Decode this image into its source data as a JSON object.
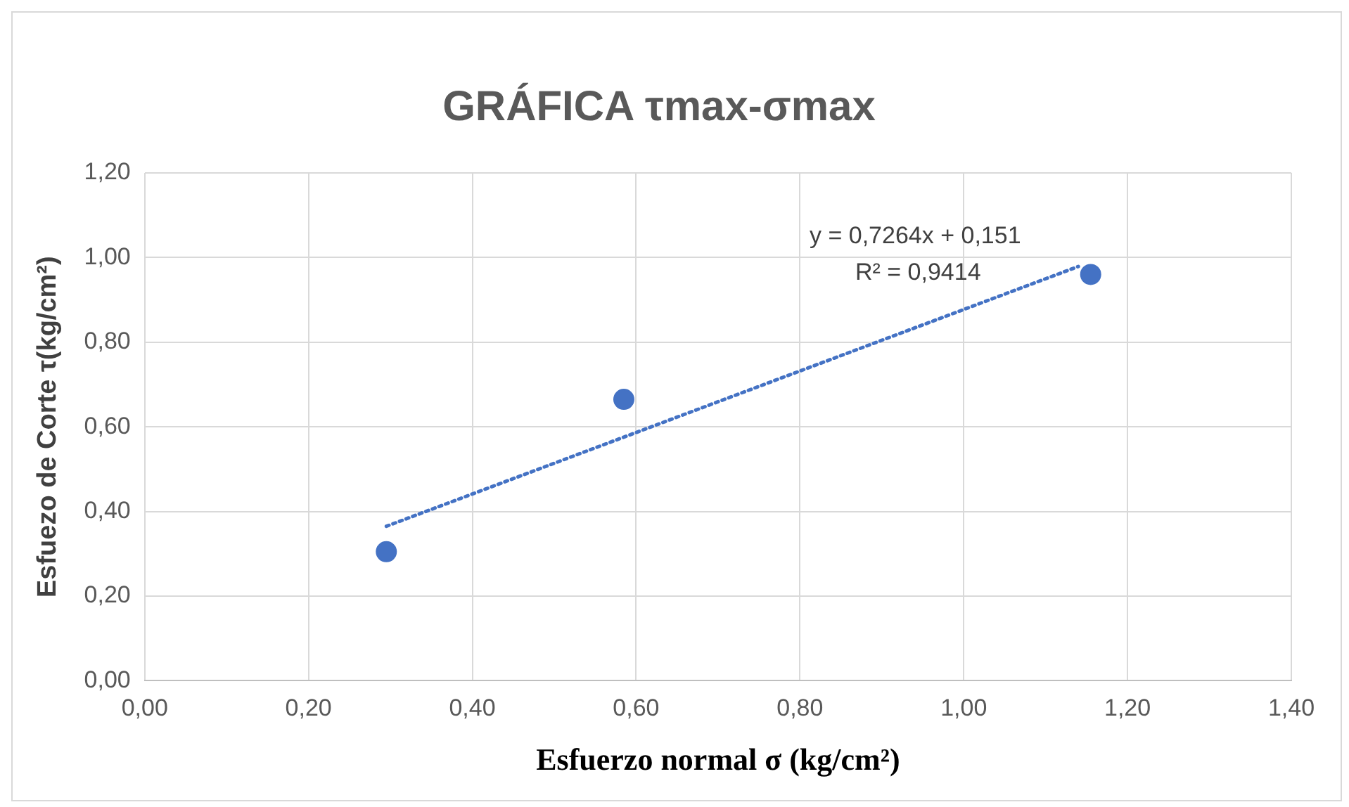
{
  "chart_data": {
    "type": "scatter",
    "title": "GRÁFICA τmax-σmax",
    "xlabel": "Esfuerzo normal σ (kg/cm²)",
    "ylabel": "Esfuezo de Corte τ(kg/cm²)",
    "series": [
      {
        "color": "#4472c4",
        "marker": "circle",
        "x": [
          0.295,
          0.585,
          1.155
        ],
        "values": [
          0.305,
          0.665,
          0.96
        ]
      },
      {
        "type": "line",
        "color": "#4472c4",
        "marker": "none",
        "line_style": "dotted",
        "x": [
          0.295,
          1.14
        ],
        "values": [
          0.365,
          0.979
        ]
      }
    ],
    "xlim": [
      0,
      1.4
    ],
    "xticks": [
      {
        "value": 0,
        "label": "0,00"
      },
      {
        "value": 0.2,
        "label": "0,20"
      },
      {
        "value": 0.4,
        "label": "0,40"
      },
      {
        "value": 0.6,
        "label": "0,60"
      },
      {
        "value": 0.8,
        "label": "0,80"
      },
      {
        "value": 1,
        "label": "1,00"
      },
      {
        "value": 1.2,
        "label": "1,20"
      },
      {
        "value": 1.4,
        "label": "1,40"
      }
    ],
    "ylim": [
      0,
      1.2
    ],
    "yticks": [
      {
        "value": 0,
        "label": "0,00"
      },
      {
        "value": 0.2,
        "label": "0,20"
      },
      {
        "value": 0.4,
        "label": "0,40"
      },
      {
        "value": 0.6,
        "label": "0,60"
      },
      {
        "value": 0.8,
        "label": "0,80"
      },
      {
        "value": 1,
        "label": "1,00"
      },
      {
        "value": 1.2,
        "label": "1,20"
      }
    ],
    "annotations": [
      "y = 0,7264x + 0,151",
      "R² = 0,9414"
    ],
    "grid": true,
    "legend": false
  }
}
